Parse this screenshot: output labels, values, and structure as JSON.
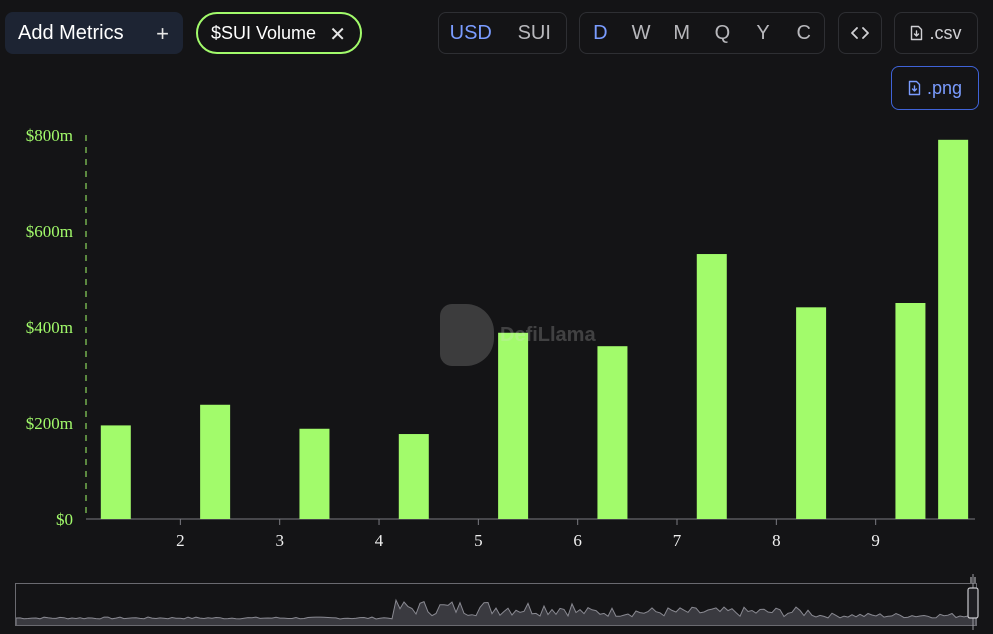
{
  "toolbar": {
    "add_metrics_label": "Add Metrics",
    "add_metrics_icon": "plus-icon",
    "active_metric_label": "$SUI Volume",
    "active_metric_remove_icon": "close-icon",
    "unit_options": [
      "USD",
      "SUI"
    ],
    "unit_selected": "USD",
    "period_options": [
      "D",
      "W",
      "M",
      "Q",
      "Y",
      "C"
    ],
    "period_selected": "D",
    "embed_icon": "code-icon",
    "csv_label": ".csv",
    "png_label": ".png",
    "download_icon": "file-download-icon"
  },
  "watermark": {
    "text": "DefiLlama"
  },
  "colors": {
    "bar": "#a2fb6b",
    "axis_label": "#a2fb6b",
    "accent": "#7a9cff",
    "background": "#141416"
  },
  "chart_data": {
    "type": "bar",
    "title": "",
    "xlabel": "",
    "ylabel": "",
    "x_tick_labels": [
      "2",
      "3",
      "4",
      "5",
      "6",
      "7",
      "8",
      "9"
    ],
    "y_tick_labels": [
      "$0",
      "$200m",
      "$400m",
      "$600m",
      "$800m"
    ],
    "ylim": [
      0,
      800
    ],
    "y_unit": "$m",
    "x_range": [
      1.05,
      10.0
    ],
    "bars": [
      {
        "x": 1.35,
        "value": 195
      },
      {
        "x": 2.35,
        "value": 238
      },
      {
        "x": 3.35,
        "value": 188
      },
      {
        "x": 4.35,
        "value": 177
      },
      {
        "x": 5.35,
        "value": 388
      },
      {
        "x": 6.35,
        "value": 360
      },
      {
        "x": 7.35,
        "value": 552
      },
      {
        "x": 8.35,
        "value": 441
      },
      {
        "x": 9.35,
        "value": 450
      },
      {
        "x": 9.78,
        "value": 790
      }
    ],
    "grid": false,
    "legend": "none"
  }
}
